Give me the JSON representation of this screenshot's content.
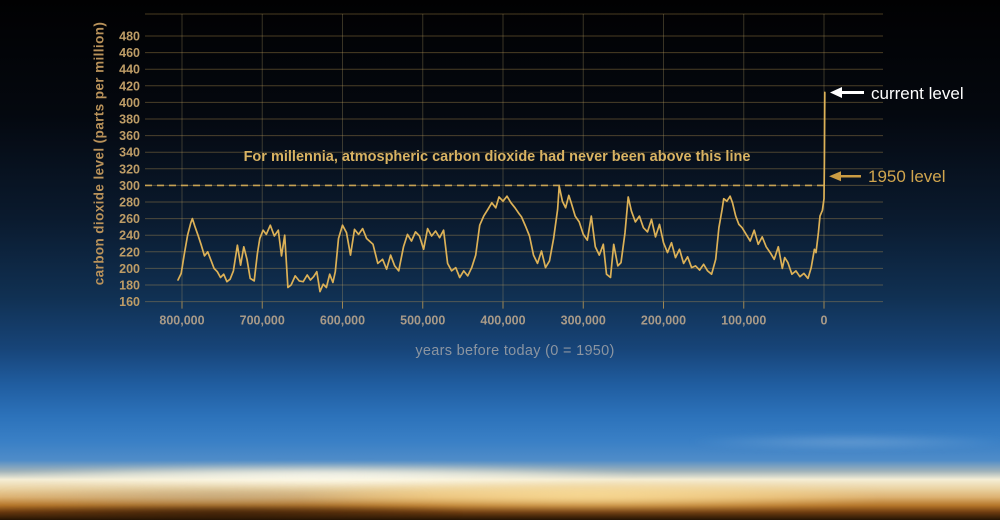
{
  "chart_data": {
    "type": "line",
    "ylabel": "carbon dioxide level (parts per million)",
    "xlabel": "years before today (0 = 1950)",
    "annotation": "For millennia, atmospheric carbon dioxide had never been above this line",
    "threshold_ppm": 300,
    "y_ticks": [
      480,
      460,
      440,
      420,
      400,
      380,
      360,
      340,
      320,
      300,
      280,
      260,
      240,
      220,
      200,
      180,
      160
    ],
    "x_ticks": [
      {
        "label": "800,000",
        "kyr": 800
      },
      {
        "label": "700,000",
        "kyr": 700
      },
      {
        "label": "600,000",
        "kyr": 600
      },
      {
        "label": "500,000",
        "kyr": 500
      },
      {
        "label": "400,000",
        "kyr": 400
      },
      {
        "label": "300,000",
        "kyr": 300
      },
      {
        "label": "200,000",
        "kyr": 200
      },
      {
        "label": "100,000",
        "kyr": 100
      },
      {
        "label": "0",
        "kyr": 0
      }
    ],
    "ylim": [
      160,
      507
    ],
    "xlim_kyr": [
      846,
      -73
    ],
    "grid": true,
    "legend": "none",
    "markers": {
      "current": {
        "label": "current level",
        "ppm": 412
      },
      "y1950": {
        "label": "1950 level",
        "ppm": 311
      }
    },
    "series": [
      {
        "name": "co2-ice-core-record",
        "points": [
          [
            805,
            186
          ],
          [
            801,
            194
          ],
          [
            797,
            218
          ],
          [
            793,
            240
          ],
          [
            789,
            255
          ],
          [
            787,
            260
          ],
          [
            784,
            251
          ],
          [
            780,
            240
          ],
          [
            776,
            228
          ],
          [
            772,
            215
          ],
          [
            768,
            220
          ],
          [
            764,
            210
          ],
          [
            760,
            200
          ],
          [
            756,
            196
          ],
          [
            752,
            189
          ],
          [
            748,
            193
          ],
          [
            744,
            184
          ],
          [
            740,
            187
          ],
          [
            736,
            197
          ],
          [
            731,
            228
          ],
          [
            727,
            204
          ],
          [
            723,
            226
          ],
          [
            719,
            211
          ],
          [
            715,
            188
          ],
          [
            710,
            185
          ],
          [
            706,
            218
          ],
          [
            703,
            236
          ],
          [
            699,
            246
          ],
          [
            695,
            241
          ],
          [
            690,
            252
          ],
          [
            685,
            239
          ],
          [
            680,
            246
          ],
          [
            676,
            215
          ],
          [
            672,
            240
          ],
          [
            668,
            177
          ],
          [
            664,
            180
          ],
          [
            659,
            191
          ],
          [
            654,
            185
          ],
          [
            649,
            184
          ],
          [
            644,
            192
          ],
          [
            640,
            186
          ],
          [
            636,
            190
          ],
          [
            632,
            196
          ],
          [
            628,
            172
          ],
          [
            624,
            181
          ],
          [
            620,
            177
          ],
          [
            616,
            193
          ],
          [
            612,
            183
          ],
          [
            609,
            196
          ],
          [
            605,
            236
          ],
          [
            600,
            252
          ],
          [
            595,
            243
          ],
          [
            590,
            216
          ],
          [
            585,
            247
          ],
          [
            580,
            241
          ],
          [
            575,
            248
          ],
          [
            570,
            236
          ],
          [
            562,
            229
          ],
          [
            556,
            206
          ],
          [
            550,
            211
          ],
          [
            545,
            199
          ],
          [
            540,
            216
          ],
          [
            535,
            203
          ],
          [
            530,
            197
          ],
          [
            524,
            226
          ],
          [
            519,
            241
          ],
          [
            514,
            233
          ],
          [
            509,
            244
          ],
          [
            504,
            239
          ],
          [
            499,
            223
          ],
          [
            494,
            248
          ],
          [
            489,
            239
          ],
          [
            484,
            245
          ],
          [
            479,
            237
          ],
          [
            474,
            246
          ],
          [
            469,
            206
          ],
          [
            464,
            197
          ],
          [
            459,
            201
          ],
          [
            454,
            189
          ],
          [
            449,
            197
          ],
          [
            444,
            191
          ],
          [
            439,
            201
          ],
          [
            434,
            216
          ],
          [
            429,
            252
          ],
          [
            424,
            263
          ],
          [
            419,
            271
          ],
          [
            414,
            279
          ],
          [
            409,
            273
          ],
          [
            405,
            286
          ],
          [
            400,
            281
          ],
          [
            395,
            287
          ],
          [
            390,
            279
          ],
          [
            385,
            273
          ],
          [
            380,
            266
          ],
          [
            377,
            262
          ],
          [
            372,
            251
          ],
          [
            367,
            239
          ],
          [
            362,
            216
          ],
          [
            357,
            206
          ],
          [
            352,
            221
          ],
          [
            347,
            201
          ],
          [
            342,
            209
          ],
          [
            337,
            236
          ],
          [
            332,
            271
          ],
          [
            330,
            299
          ],
          [
            326,
            281
          ],
          [
            322,
            273
          ],
          [
            318,
            288
          ],
          [
            315,
            279
          ],
          [
            310,
            263
          ],
          [
            305,
            256
          ],
          [
            300,
            241
          ],
          [
            295,
            234
          ],
          [
            290,
            263
          ],
          [
            285,
            226
          ],
          [
            280,
            216
          ],
          [
            275,
            229
          ],
          [
            271,
            193
          ],
          [
            266,
            189
          ],
          [
            262,
            229
          ],
          [
            257,
            203
          ],
          [
            253,
            207
          ],
          [
            248,
            243
          ],
          [
            244,
            286
          ],
          [
            240,
            269
          ],
          [
            235,
            256
          ],
          [
            230,
            263
          ],
          [
            225,
            249
          ],
          [
            220,
            244
          ],
          [
            215,
            259
          ],
          [
            210,
            238
          ],
          [
            205,
            253
          ],
          [
            200,
            231
          ],
          [
            195,
            219
          ],
          [
            190,
            231
          ],
          [
            185,
            213
          ],
          [
            180,
            223
          ],
          [
            175,
            206
          ],
          [
            170,
            214
          ],
          [
            165,
            201
          ],
          [
            160,
            203
          ],
          [
            155,
            198
          ],
          [
            150,
            205
          ],
          [
            145,
            197
          ],
          [
            140,
            193
          ],
          [
            135,
            211
          ],
          [
            131,
            249
          ],
          [
            127,
            271
          ],
          [
            125,
            284
          ],
          [
            121,
            281
          ],
          [
            117,
            287
          ],
          [
            114,
            279
          ],
          [
            110,
            263
          ],
          [
            106,
            253
          ],
          [
            102,
            249
          ],
          [
            97,
            241
          ],
          [
            92,
            233
          ],
          [
            87,
            246
          ],
          [
            82,
            229
          ],
          [
            77,
            238
          ],
          [
            72,
            226
          ],
          [
            67,
            219
          ],
          [
            62,
            211
          ],
          [
            57,
            226
          ],
          [
            52,
            200
          ],
          [
            49,
            213
          ],
          [
            45,
            207
          ],
          [
            40,
            193
          ],
          [
            35,
            197
          ],
          [
            30,
            190
          ],
          [
            25,
            194
          ],
          [
            20,
            188
          ],
          [
            16,
            201
          ],
          [
            12,
            223
          ],
          [
            10,
            219
          ],
          [
            7,
            243
          ],
          [
            5,
            263
          ],
          [
            2,
            270
          ],
          [
            0,
            284
          ],
          [
            -0.5,
            330
          ],
          [
            -1,
            412
          ]
        ]
      }
    ]
  },
  "colors": {
    "curve": "#dcb157",
    "grid_h": "rgba(193,155,83,0.38)",
    "grid_v": "rgba(185,165,110,0.30)",
    "tick_mark": "rgba(193,155,83,0.8)",
    "dashed_threshold": "#c7a253",
    "y_tick_label": "#bd9c66",
    "x_tick_label": "#a89a88",
    "annotation_text": "#d9b362",
    "current_label": "#ffffff",
    "label_1950": "#d0a54e",
    "arrow_current": "#ffffff",
    "arrow_1950": "#c99b43"
  }
}
